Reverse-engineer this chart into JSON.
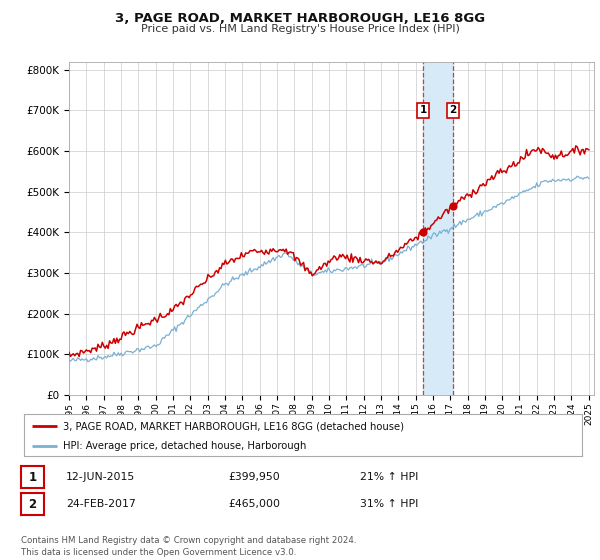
{
  "title1": "3, PAGE ROAD, MARKET HARBOROUGH, LE16 8GG",
  "title2": "Price paid vs. HM Land Registry's House Price Index (HPI)",
  "legend_label1": "3, PAGE ROAD, MARKET HARBOROUGH, LE16 8GG (detached house)",
  "legend_label2": "HPI: Average price, detached house, Harborough",
  "event1_date": "12-JUN-2015",
  "event1_price": "£399,950",
  "event1_hpi": "21% ↑ HPI",
  "event2_date": "24-FEB-2017",
  "event2_price": "£465,000",
  "event2_hpi": "31% ↑ HPI",
  "footer": "Contains HM Land Registry data © Crown copyright and database right 2024.\nThis data is licensed under the Open Government Licence v3.0.",
  "line1_color": "#cc0000",
  "line2_color": "#7ab0d4",
  "shade_color": "#d6ebf7",
  "dot_color": "#cc0000",
  "event1_x": 2015.44,
  "event2_x": 2017.15,
  "event1_y": 399950,
  "event2_y": 465000,
  "bg_color": "#ffffff",
  "grid_color": "#cccccc",
  "ylim": [
    0,
    820000
  ],
  "xlim_start": 1995,
  "xlim_end": 2025.3,
  "yticks": [
    0,
    100000,
    200000,
    300000,
    400000,
    500000,
    600000,
    700000,
    800000
  ],
  "ytick_labels": [
    "£0",
    "£100K",
    "£200K",
    "£300K",
    "£400K",
    "£500K",
    "£600K",
    "£700K",
    "£800K"
  ]
}
